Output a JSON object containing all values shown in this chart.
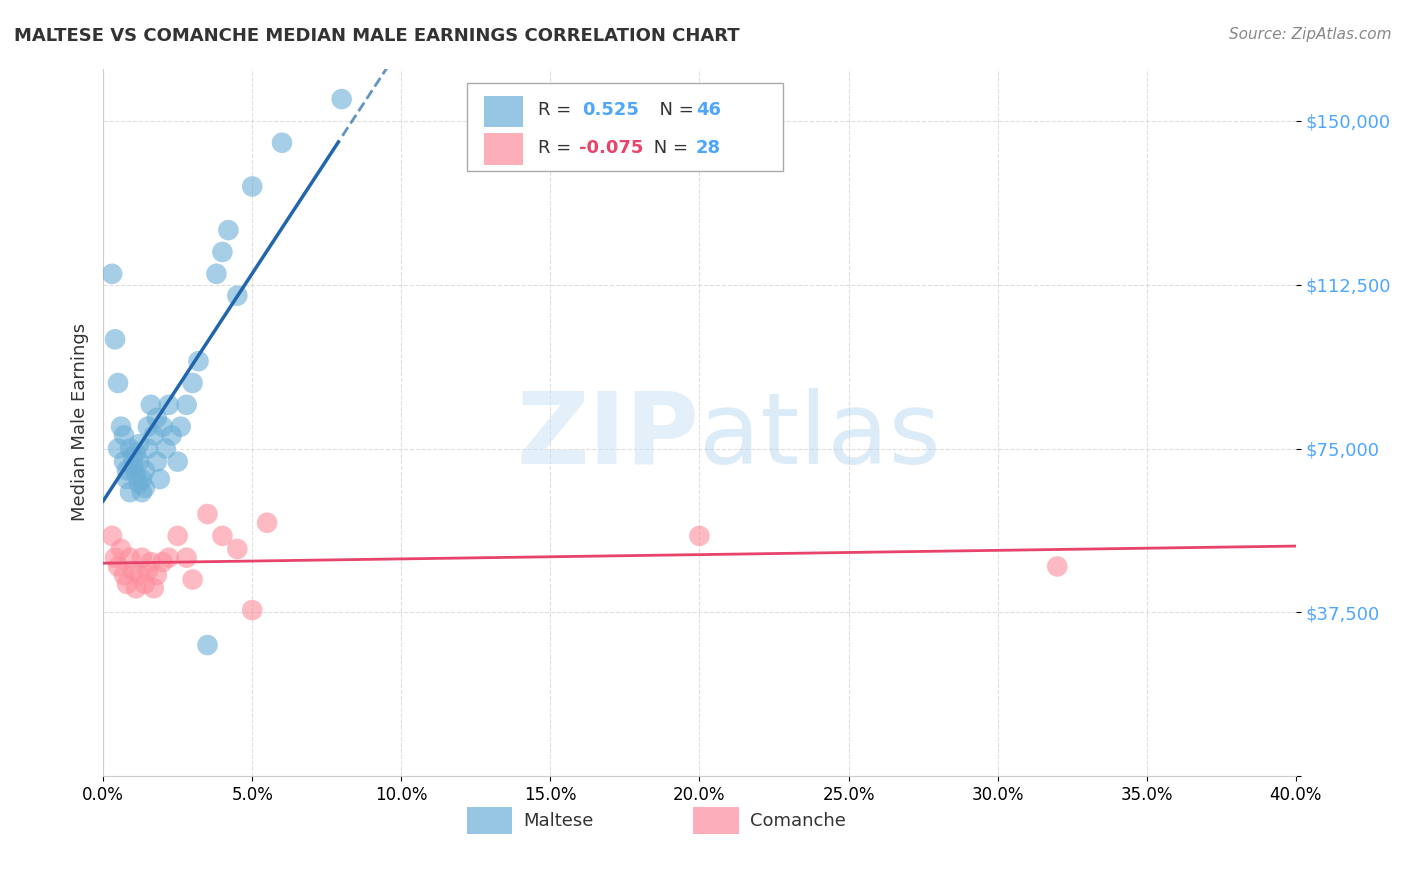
{
  "title": "MALTESE VS COMANCHE MEDIAN MALE EARNINGS CORRELATION CHART",
  "source": "Source: ZipAtlas.com",
  "ylabel": "Median Male Earnings",
  "yticks": [
    0,
    37500,
    75000,
    112500,
    150000
  ],
  "ytick_labels": [
    "",
    "$37,500",
    "$75,000",
    "$112,500",
    "$150,000"
  ],
  "xticks": [
    0.0,
    0.05,
    0.1,
    0.15,
    0.2,
    0.25,
    0.3,
    0.35,
    0.4
  ],
  "xtick_labels": [
    "0.0%",
    "5.0%",
    "10.0%",
    "15.0%",
    "20.0%",
    "25.0%",
    "30.0%",
    "35.0%",
    "40.0%"
  ],
  "xmin": 0.0,
  "xmax": 0.4,
  "ymin": 0,
  "ymax": 162000,
  "legend_blue_r": "0.525",
  "legend_blue_n": "46",
  "legend_pink_r": "-0.075",
  "legend_pink_n": "28",
  "blue_color": "#6baed6",
  "pink_color": "#fc8d9c",
  "trend_blue_color": "#2166ac",
  "trend_pink_color": "#e8436b",
  "ytick_color": "#4da6ff",
  "text_color": "#333333",
  "source_color": "#888888",
  "grid_color": "#d0d0d0",
  "maltese_x": [
    0.005,
    0.005,
    0.006,
    0.007,
    0.007,
    0.008,
    0.008,
    0.009,
    0.009,
    0.01,
    0.01,
    0.011,
    0.011,
    0.012,
    0.012,
    0.012,
    0.013,
    0.013,
    0.014,
    0.014,
    0.015,
    0.015,
    0.016,
    0.017,
    0.018,
    0.018,
    0.019,
    0.02,
    0.021,
    0.022,
    0.023,
    0.025,
    0.026,
    0.028,
    0.03,
    0.032,
    0.035,
    0.038,
    0.04,
    0.042,
    0.045,
    0.05,
    0.003,
    0.004,
    0.06,
    0.08
  ],
  "maltese_y": [
    75000,
    90000,
    80000,
    78000,
    72000,
    70000,
    68000,
    75000,
    65000,
    73000,
    71000,
    69000,
    74000,
    67000,
    72000,
    76000,
    65000,
    68000,
    70000,
    66000,
    80000,
    75000,
    85000,
    78000,
    82000,
    72000,
    68000,
    80000,
    75000,
    85000,
    78000,
    72000,
    80000,
    85000,
    90000,
    95000,
    30000,
    115000,
    120000,
    125000,
    110000,
    135000,
    115000,
    100000,
    145000,
    155000
  ],
  "comanche_x": [
    0.003,
    0.004,
    0.005,
    0.006,
    0.007,
    0.008,
    0.009,
    0.01,
    0.011,
    0.012,
    0.013,
    0.014,
    0.015,
    0.016,
    0.017,
    0.018,
    0.02,
    0.022,
    0.025,
    0.028,
    0.03,
    0.035,
    0.04,
    0.045,
    0.05,
    0.055,
    0.2,
    0.32
  ],
  "comanche_y": [
    55000,
    50000,
    48000,
    52000,
    46000,
    44000,
    50000,
    47000,
    43000,
    46000,
    50000,
    44000,
    47000,
    49000,
    43000,
    46000,
    49000,
    50000,
    55000,
    50000,
    45000,
    60000,
    55000,
    52000,
    38000,
    58000,
    55000,
    48000
  ]
}
